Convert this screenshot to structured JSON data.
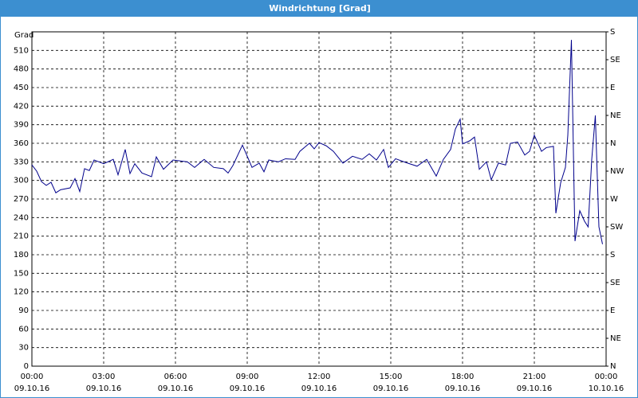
{
  "chart_data": {
    "type": "line",
    "title": "Windrichtung [Grad]",
    "y_label": "Grad",
    "xlim": [
      0,
      24
    ],
    "xticks": [
      {
        "value": 0,
        "label": "00:00"
      },
      {
        "value": 3,
        "label": "03:00"
      },
      {
        "value": 6,
        "label": "06:00"
      },
      {
        "value": 9,
        "label": "09:00"
      },
      {
        "value": 12,
        "label": "12:00"
      },
      {
        "value": 15,
        "label": "15:00"
      },
      {
        "value": 18,
        "label": "18:00"
      },
      {
        "value": 21,
        "label": "21:00"
      },
      {
        "value": 24,
        "label": "00:00"
      }
    ],
    "xtick_dates": [
      "09.10.16",
      "09.10.16",
      "09.10.16",
      "09.10.16",
      "09.10.16",
      "09.10.16",
      "09.10.16",
      "09.10.16",
      "10.10.16"
    ],
    "ylim": [
      0,
      540
    ],
    "yticks": [
      0,
      30,
      60,
      90,
      120,
      150,
      180,
      210,
      240,
      270,
      300,
      330,
      360,
      390,
      420,
      450,
      480,
      510
    ],
    "y2lim": [
      0,
      540
    ],
    "y2ticks": [
      {
        "value": 0,
        "label": "N"
      },
      {
        "value": 45,
        "label": "NE"
      },
      {
        "value": 90,
        "label": "E"
      },
      {
        "value": 135,
        "label": "SE"
      },
      {
        "value": 180,
        "label": "S"
      },
      {
        "value": 225,
        "label": "SW"
      },
      {
        "value": 270,
        "label": "W"
      },
      {
        "value": 315,
        "label": "NW"
      },
      {
        "value": 360,
        "label": "N"
      },
      {
        "value": 405,
        "label": "NE"
      },
      {
        "value": 450,
        "label": "E"
      },
      {
        "value": 495,
        "label": "SE"
      },
      {
        "value": 540,
        "label": "S"
      }
    ],
    "grid": true,
    "x": [
      0,
      0.2,
      0.4,
      0.6,
      0.8,
      1.0,
      1.2,
      1.6,
      1.8,
      2.0,
      2.2,
      2.4,
      2.6,
      3.0,
      3.4,
      3.6,
      3.9,
      4.1,
      4.3,
      4.6,
      5.0,
      5.2,
      5.5,
      5.9,
      6.5,
      6.8,
      7.2,
      7.6,
      8.0,
      8.2,
      8.4,
      8.8,
      9.0,
      9.2,
      9.5,
      9.7,
      9.9,
      10.3,
      10.6,
      11.0,
      11.2,
      11.6,
      11.8,
      12.0,
      12.3,
      12.6,
      13.0,
      13.4,
      13.8,
      14.1,
      14.4,
      14.7,
      14.9,
      15.2,
      15.7,
      16.1,
      16.5,
      16.9,
      17.2,
      17.5,
      17.7,
      17.9,
      18.0,
      18.3,
      18.5,
      18.7,
      19.0,
      19.2,
      19.5,
      19.8,
      20.0,
      20.3,
      20.6,
      20.8,
      21.0,
      21.3,
      21.5,
      21.8,
      21.9,
      22.1,
      22.3,
      22.4,
      22.55,
      22.7,
      22.9,
      23.1,
      23.25,
      23.4,
      23.55,
      23.7,
      23.85
    ],
    "series": [
      {
        "name": "Windrichtung",
        "color": "#00008b",
        "values": [
          325,
          315,
          298,
          292,
          297,
          280,
          285,
          288,
          303,
          282,
          319,
          316,
          333,
          327,
          334,
          309,
          350,
          311,
          327,
          312,
          306,
          338,
          318,
          333,
          330,
          321,
          334,
          321,
          319,
          312,
          324,
          357,
          339,
          321,
          328,
          314,
          333,
          330,
          335,
          334,
          347,
          360,
          351,
          361,
          356,
          347,
          328,
          339,
          334,
          343,
          333,
          350,
          321,
          335,
          328,
          323,
          334,
          307,
          334,
          350,
          383,
          399,
          359,
          364,
          370,
          318,
          330,
          301,
          328,
          325,
          360,
          362,
          341,
          347,
          373,
          347,
          353,
          355,
          247,
          296,
          321,
          373,
          527,
          202,
          251,
          234,
          225,
          334,
          405,
          225,
          197
        ]
      }
    ]
  }
}
